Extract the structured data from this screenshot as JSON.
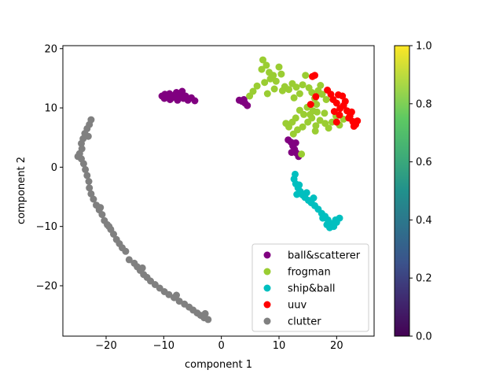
{
  "chart_data": {
    "type": "scatter",
    "xlabel": "component 1",
    "ylabel": "component 2",
    "xlim": [
      -27.5,
      26.5
    ],
    "ylim": [
      -28.5,
      20.5
    ],
    "xticks": [
      -20,
      -10,
      0,
      10,
      20
    ],
    "yticks": [
      -20,
      -10,
      0,
      10,
      20
    ],
    "xtick_labels": [
      "−20",
      "−10",
      "0",
      "10",
      "20"
    ],
    "ytick_labels": [
      "−20",
      "−10",
      "0",
      "10",
      "20"
    ],
    "grid": false,
    "legend_position": "lower-right",
    "series": [
      {
        "name": "ball&scatterer",
        "color": "#800080",
        "points": [
          [
            -10.3,
            12.0
          ],
          [
            -9.8,
            12.3
          ],
          [
            -9.4,
            11.9
          ],
          [
            -9.0,
            12.4
          ],
          [
            -8.6,
            11.7
          ],
          [
            -8.2,
            12.1
          ],
          [
            -7.8,
            12.6
          ],
          [
            -7.4,
            11.8
          ],
          [
            -7.0,
            12.2
          ],
          [
            -6.6,
            11.6
          ],
          [
            -6.2,
            12.0
          ],
          [
            -5.8,
            11.3
          ],
          [
            -5.2,
            11.7
          ],
          [
            -4.6,
            11.2
          ],
          [
            -9.9,
            11.6
          ],
          [
            -8.9,
            11.4
          ],
          [
            -7.6,
            11.3
          ],
          [
            -6.8,
            12.8
          ],
          [
            3.1,
            11.3
          ],
          [
            3.6,
            11.1
          ],
          [
            4.1,
            10.8
          ],
          [
            4.5,
            10.4
          ],
          [
            3.9,
            11.4
          ],
          [
            11.6,
            4.6
          ],
          [
            12.1,
            4.2
          ],
          [
            12.4,
            3.6
          ],
          [
            12.7,
            3.0
          ],
          [
            13.0,
            2.4
          ],
          [
            13.4,
            1.8
          ],
          [
            12.2,
            2.5
          ],
          [
            12.9,
            4.1
          ]
        ]
      },
      {
        "name": "frogman",
        "color": "#9acd32",
        "points": [
          [
            7.2,
            18.1
          ],
          [
            7.8,
            17.2
          ],
          [
            7.0,
            16.5
          ],
          [
            8.3,
            16.0
          ],
          [
            9.0,
            15.5
          ],
          [
            8.5,
            14.9
          ],
          [
            9.5,
            14.5
          ],
          [
            10.0,
            16.9
          ],
          [
            10.4,
            15.7
          ],
          [
            7.5,
            14.3
          ],
          [
            6.2,
            13.7
          ],
          [
            5.5,
            12.8
          ],
          [
            4.9,
            12.0
          ],
          [
            11.0,
            13.6
          ],
          [
            11.7,
            13.1
          ],
          [
            12.3,
            14.1
          ],
          [
            13.0,
            13.5
          ],
          [
            13.6,
            12.4
          ],
          [
            12.6,
            11.7
          ],
          [
            14.1,
            13.9
          ],
          [
            14.6,
            15.5
          ],
          [
            15.2,
            13.4
          ],
          [
            15.7,
            12.6
          ],
          [
            16.2,
            11.6
          ],
          [
            16.8,
            12.9
          ],
          [
            17.2,
            13.8
          ],
          [
            17.5,
            12.3
          ],
          [
            16.5,
            10.6
          ],
          [
            15.9,
            9.5
          ],
          [
            14.9,
            10.1
          ],
          [
            14.3,
            8.9
          ],
          [
            13.6,
            9.6
          ],
          [
            12.9,
            8.3
          ],
          [
            12.3,
            7.6
          ],
          [
            11.7,
            6.8
          ],
          [
            12.5,
            5.6
          ],
          [
            13.2,
            6.3
          ],
          [
            14.1,
            6.8
          ],
          [
            15.0,
            7.6
          ],
          [
            15.7,
            8.3
          ],
          [
            16.4,
            7.0
          ],
          [
            17.1,
            7.9
          ],
          [
            18.0,
            7.4
          ],
          [
            18.6,
            6.6
          ],
          [
            19.2,
            7.6
          ],
          [
            19.9,
            8.6
          ],
          [
            20.5,
            7.1
          ],
          [
            21.2,
            8.1
          ],
          [
            15.4,
            8.9
          ],
          [
            16.6,
            9.3
          ],
          [
            17.9,
            9.1
          ],
          [
            13.9,
            2.2
          ],
          [
            16.3,
            6.1
          ],
          [
            11.2,
            7.4
          ],
          [
            9.2,
            13.2
          ],
          [
            10.6,
            12.9
          ],
          [
            8.0,
            12.4
          ],
          [
            18.2,
            11.4
          ]
        ]
      },
      {
        "name": "ship&ball",
        "color": "#00bfbf",
        "points": [
          [
            12.8,
            -1.2
          ],
          [
            12.6,
            -2.0
          ],
          [
            12.9,
            -2.8
          ],
          [
            13.3,
            -3.5
          ],
          [
            13.7,
            -4.1
          ],
          [
            14.1,
            -4.7
          ],
          [
            13.5,
            -3.0
          ],
          [
            14.5,
            -5.1
          ],
          [
            15.1,
            -5.6
          ],
          [
            15.6,
            -6.0
          ],
          [
            16.2,
            -6.5
          ],
          [
            16.8,
            -7.1
          ],
          [
            17.4,
            -7.8
          ],
          [
            18.0,
            -8.3
          ],
          [
            18.5,
            -8.9
          ],
          [
            19.0,
            -9.5
          ],
          [
            19.5,
            -10.0
          ],
          [
            20.0,
            -9.3
          ],
          [
            20.5,
            -8.6
          ],
          [
            18.8,
            -10.2
          ],
          [
            17.6,
            -8.6
          ],
          [
            19.8,
            -8.9
          ],
          [
            14.8,
            -4.3
          ],
          [
            13.1,
            -4.6
          ],
          [
            18.3,
            -9.7
          ],
          [
            16.0,
            -5.2
          ]
        ]
      },
      {
        "name": "uuv",
        "color": "#ff0000",
        "points": [
          [
            16.2,
            15.5
          ],
          [
            15.8,
            15.3
          ],
          [
            16.4,
            11.9
          ],
          [
            15.5,
            10.6
          ],
          [
            18.4,
            13.0
          ],
          [
            19.0,
            12.3
          ],
          [
            19.4,
            11.4
          ],
          [
            20.0,
            10.8
          ],
          [
            20.6,
            9.9
          ],
          [
            21.2,
            10.4
          ],
          [
            21.8,
            9.5
          ],
          [
            22.3,
            8.6
          ],
          [
            22.8,
            7.7
          ],
          [
            23.3,
            7.2
          ],
          [
            23.6,
            7.8
          ],
          [
            22.6,
            9.3
          ],
          [
            21.5,
            11.1
          ],
          [
            20.5,
            8.8
          ],
          [
            20.0,
            7.6
          ],
          [
            22.1,
            8.3
          ],
          [
            23.0,
            6.9
          ],
          [
            21.0,
            12.0
          ],
          [
            19.6,
            9.4
          ],
          [
            20.3,
            12.2
          ]
        ]
      },
      {
        "name": "clutter",
        "color": "#808080",
        "points": [
          [
            -22.6,
            8.0
          ],
          [
            -22.9,
            7.2
          ],
          [
            -23.3,
            6.5
          ],
          [
            -23.7,
            5.7
          ],
          [
            -24.0,
            4.8
          ],
          [
            -24.3,
            4.0
          ],
          [
            -24.2,
            3.1
          ],
          [
            -24.6,
            2.3
          ],
          [
            -24.3,
            1.4
          ],
          [
            -23.9,
            0.6
          ],
          [
            -23.6,
            -0.4
          ],
          [
            -23.3,
            -1.4
          ],
          [
            -23.0,
            -2.4
          ],
          [
            -22.9,
            -3.5
          ],
          [
            -22.6,
            -4.5
          ],
          [
            -22.2,
            -5.4
          ],
          [
            -21.7,
            -6.4
          ],
          [
            -21.2,
            -7.2
          ],
          [
            -20.7,
            -8.0
          ],
          [
            -20.3,
            -9.0
          ],
          [
            -19.8,
            -9.7
          ],
          [
            -19.2,
            -10.5
          ],
          [
            -18.7,
            -11.3
          ],
          [
            -18.2,
            -12.2
          ],
          [
            -17.7,
            -12.9
          ],
          [
            -17.2,
            -13.6
          ],
          [
            -16.6,
            -14.2
          ],
          [
            -15.1,
            -16.2
          ],
          [
            -14.6,
            -16.8
          ],
          [
            -14.1,
            -17.4
          ],
          [
            -13.5,
            -18.1
          ],
          [
            -12.9,
            -18.6
          ],
          [
            -12.3,
            -19.2
          ],
          [
            -11.5,
            -19.8
          ],
          [
            -10.7,
            -20.4
          ],
          [
            -9.9,
            -21.0
          ],
          [
            -9.1,
            -21.5
          ],
          [
            -8.2,
            -22.0
          ],
          [
            -7.3,
            -22.6
          ],
          [
            -6.4,
            -23.1
          ],
          [
            -5.6,
            -23.6
          ],
          [
            -4.9,
            -24.1
          ],
          [
            -4.2,
            -24.6
          ],
          [
            -3.6,
            -25.0
          ],
          [
            -3.0,
            -25.4
          ],
          [
            -2.3,
            -25.7
          ],
          [
            -2.8,
            -24.7
          ],
          [
            -24.9,
            1.8
          ],
          [
            -23.1,
            5.2
          ],
          [
            -21.0,
            -6.8
          ],
          [
            -19.5,
            -10.0
          ],
          [
            -16.0,
            -15.6
          ],
          [
            -13.7,
            -17.0
          ],
          [
            -7.8,
            -21.6
          ]
        ]
      }
    ],
    "colorbar": {
      "min": 0.0,
      "max": 1.0,
      "ticks": [
        0.0,
        0.2,
        0.4,
        0.6,
        0.8,
        1.0
      ],
      "tick_labels": [
        "0.0",
        "0.2",
        "0.4",
        "0.6",
        "0.8",
        "1.0"
      ],
      "colormap": "viridis",
      "stops": [
        "#440154",
        "#3b528b",
        "#21918c",
        "#5ec962",
        "#fde725"
      ]
    }
  }
}
